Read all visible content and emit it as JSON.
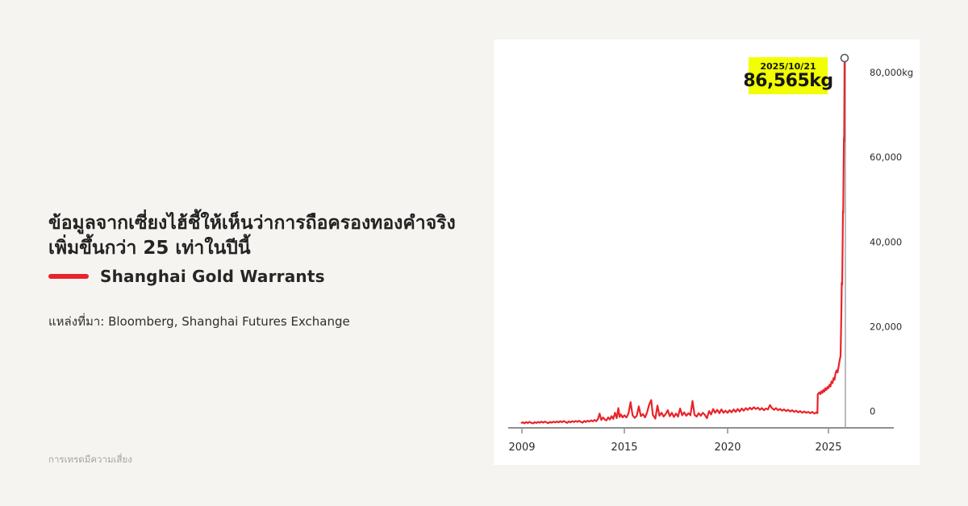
{
  "page": {
    "background_color": "#f5f4f1",
    "footer_note": "การเทรดมีความเสี่ยง"
  },
  "headline": {
    "line1": "ข้อมูลจากเซี่ยงไฮ้ชี้ให้เห็นว่าการถือครองทองคำจริง",
    "line2": "เพิ่มขึ้นกว่า 25 เท่าในปีนี้"
  },
  "legend": {
    "label": "Shanghai Gold Warrants",
    "color": "#e8242a"
  },
  "source": {
    "text": "แหล่งที่มา: Bloomberg, Shanghai Futures Exchange"
  },
  "chart_data": {
    "type": "line",
    "title": "Shanghai Gold Warrants",
    "unit": "kg",
    "grid": false,
    "legend_position": "outside-left",
    "xlim": [
      2008.9,
      2028.2
    ],
    "ylim": [
      0,
      86565
    ],
    "x_ticks": [
      {
        "label": "2009",
        "year": 2009
      },
      {
        "label": "2015",
        "year": 2015
      },
      {
        "label": "2020",
        "year": 2020
      },
      {
        "label": "2025",
        "year": 2025
      }
    ],
    "y_ticks": [
      {
        "label": "80,000kg",
        "value": 80000
      },
      {
        "label": "60,000",
        "value": 60000
      },
      {
        "label": "40,000",
        "value": 40000
      },
      {
        "label": "20,000",
        "value": 20000
      },
      {
        "label": "0",
        "value": 0
      }
    ],
    "annotation": {
      "date": "2025/10/21",
      "value_label": "86,565kg",
      "value": 86565,
      "highlight_color": "#f1ff00"
    },
    "marker": {
      "shape": "open-circle",
      "fill": "#ffffff",
      "stroke": "#5a5a5a"
    },
    "series": [
      {
        "name": "Shanghai Gold Warrants",
        "color": "#e8242a",
        "points": [
          [
            2008.95,
            350
          ],
          [
            2009.05,
            550
          ],
          [
            2009.15,
            300
          ],
          [
            2009.25,
            600
          ],
          [
            2009.35,
            380
          ],
          [
            2009.45,
            650
          ],
          [
            2009.55,
            420
          ],
          [
            2009.65,
            300
          ],
          [
            2009.75,
            580
          ],
          [
            2009.85,
            400
          ],
          [
            2009.95,
            620
          ],
          [
            2010.05,
            450
          ],
          [
            2010.15,
            700
          ],
          [
            2010.25,
            480
          ],
          [
            2010.35,
            720
          ],
          [
            2010.45,
            500
          ],
          [
            2010.55,
            350
          ],
          [
            2010.65,
            640
          ],
          [
            2010.75,
            460
          ],
          [
            2010.85,
            700
          ],
          [
            2010.95,
            520
          ],
          [
            2011.05,
            750
          ],
          [
            2011.15,
            540
          ],
          [
            2011.25,
            800
          ],
          [
            2011.35,
            580
          ],
          [
            2011.45,
            830
          ],
          [
            2011.55,
            600
          ],
          [
            2011.65,
            420
          ],
          [
            2011.75,
            760
          ],
          [
            2011.85,
            560
          ],
          [
            2011.95,
            820
          ],
          [
            2012.05,
            600
          ],
          [
            2012.15,
            880
          ],
          [
            2012.25,
            640
          ],
          [
            2012.35,
            900
          ],
          [
            2012.45,
            660
          ],
          [
            2012.55,
            480
          ],
          [
            2012.65,
            860
          ],
          [
            2012.75,
            620
          ],
          [
            2012.85,
            940
          ],
          [
            2012.95,
            700
          ],
          [
            2013.05,
            1000
          ],
          [
            2013.15,
            760
          ],
          [
            2013.25,
            1100
          ],
          [
            2013.35,
            820
          ],
          [
            2013.45,
            1300
          ],
          [
            2013.55,
            2600
          ],
          [
            2013.65,
            1100
          ],
          [
            2013.75,
            1700
          ],
          [
            2013.85,
            1200
          ],
          [
            2013.95,
            1000
          ],
          [
            2014.05,
            1700
          ],
          [
            2014.15,
            1200
          ],
          [
            2014.25,
            2000
          ],
          [
            2014.35,
            1350
          ],
          [
            2014.45,
            2800
          ],
          [
            2014.55,
            1550
          ],
          [
            2014.65,
            3900
          ],
          [
            2014.72,
            1800
          ],
          [
            2014.8,
            2400
          ],
          [
            2014.9,
            1700
          ],
          [
            2015.0,
            2200
          ],
          [
            2015.1,
            1700
          ],
          [
            2015.2,
            2600
          ],
          [
            2015.3,
            5300
          ],
          [
            2015.4,
            2200
          ],
          [
            2015.5,
            1600
          ],
          [
            2015.6,
            2100
          ],
          [
            2015.7,
            4300
          ],
          [
            2015.8,
            2000
          ],
          [
            2015.9,
            2500
          ],
          [
            2016.0,
            1700
          ],
          [
            2016.1,
            2900
          ],
          [
            2016.2,
            4700
          ],
          [
            2016.3,
            5800
          ],
          [
            2016.38,
            2300
          ],
          [
            2016.5,
            1400
          ],
          [
            2016.6,
            4500
          ],
          [
            2016.7,
            2100
          ],
          [
            2016.8,
            2800
          ],
          [
            2016.9,
            1900
          ],
          [
            2017.0,
            2500
          ],
          [
            2017.1,
            3400
          ],
          [
            2017.2,
            2000
          ],
          [
            2017.3,
            2800
          ],
          [
            2017.4,
            1800
          ],
          [
            2017.5,
            2600
          ],
          [
            2017.6,
            1900
          ],
          [
            2017.7,
            3800
          ],
          [
            2017.8,
            2200
          ],
          [
            2017.9,
            2900
          ],
          [
            2018.0,
            2100
          ],
          [
            2018.1,
            2700
          ],
          [
            2018.2,
            2200
          ],
          [
            2018.3,
            5600
          ],
          [
            2018.4,
            2300
          ],
          [
            2018.5,
            1900
          ],
          [
            2018.6,
            2700
          ],
          [
            2018.7,
            2100
          ],
          [
            2018.8,
            2800
          ],
          [
            2018.9,
            2300
          ],
          [
            2019.0,
            1500
          ],
          [
            2019.1,
            3200
          ],
          [
            2019.2,
            2400
          ],
          [
            2019.3,
            3700
          ],
          [
            2019.4,
            2800
          ],
          [
            2019.5,
            3500
          ],
          [
            2019.6,
            2700
          ],
          [
            2019.7,
            3600
          ],
          [
            2019.8,
            2800
          ],
          [
            2019.9,
            3300
          ],
          [
            2020.0,
            2800
          ],
          [
            2020.1,
            3400
          ],
          [
            2020.2,
            2900
          ],
          [
            2020.3,
            3600
          ],
          [
            2020.4,
            3000
          ],
          [
            2020.5,
            3700
          ],
          [
            2020.6,
            3100
          ],
          [
            2020.7,
            3800
          ],
          [
            2020.8,
            3300
          ],
          [
            2020.9,
            3900
          ],
          [
            2021.0,
            3500
          ],
          [
            2021.1,
            4000
          ],
          [
            2021.2,
            3600
          ],
          [
            2021.3,
            4100
          ],
          [
            2021.4,
            3700
          ],
          [
            2021.5,
            4000
          ],
          [
            2021.6,
            3500
          ],
          [
            2021.7,
            3900
          ],
          [
            2021.8,
            3400
          ],
          [
            2021.9,
            3800
          ],
          [
            2022.0,
            3600
          ],
          [
            2022.1,
            4600
          ],
          [
            2022.2,
            3900
          ],
          [
            2022.3,
            3500
          ],
          [
            2022.4,
            3900
          ],
          [
            2022.5,
            3400
          ],
          [
            2022.6,
            3700
          ],
          [
            2022.7,
            3300
          ],
          [
            2022.8,
            3600
          ],
          [
            2022.9,
            3200
          ],
          [
            2023.0,
            3500
          ],
          [
            2023.1,
            3100
          ],
          [
            2023.2,
            3400
          ],
          [
            2023.3,
            3000
          ],
          [
            2023.4,
            3300
          ],
          [
            2023.5,
            2900
          ],
          [
            2023.6,
            3200
          ],
          [
            2023.7,
            2800
          ],
          [
            2023.8,
            3100
          ],
          [
            2023.9,
            2800
          ],
          [
            2024.0,
            3000
          ],
          [
            2024.1,
            2700
          ],
          [
            2024.2,
            3000
          ],
          [
            2024.3,
            2600
          ],
          [
            2024.4,
            2900
          ],
          [
            2024.45,
            2700
          ],
          [
            2024.47,
            7200
          ],
          [
            2024.55,
            7600
          ],
          [
            2024.6,
            7200
          ],
          [
            2024.65,
            7900
          ],
          [
            2024.7,
            7500
          ],
          [
            2024.75,
            8200
          ],
          [
            2024.8,
            7800
          ],
          [
            2024.85,
            8600
          ],
          [
            2024.9,
            8200
          ],
          [
            2024.95,
            8900
          ],
          [
            2025.0,
            8600
          ],
          [
            2025.05,
            9400
          ],
          [
            2025.1,
            9000
          ],
          [
            2025.15,
            10200
          ],
          [
            2025.2,
            9800
          ],
          [
            2025.25,
            11000
          ],
          [
            2025.3,
            10600
          ],
          [
            2025.35,
            12000
          ],
          [
            2025.4,
            12800
          ],
          [
            2025.45,
            12300
          ],
          [
            2025.5,
            13600
          ],
          [
            2025.55,
            15000
          ],
          [
            2025.6,
            16200
          ],
          [
            2025.62,
            21000
          ],
          [
            2025.64,
            26500
          ],
          [
            2025.66,
            33500
          ],
          [
            2025.68,
            33000
          ],
          [
            2025.7,
            41000
          ],
          [
            2025.72,
            50500
          ],
          [
            2025.73,
            50000
          ],
          [
            2025.75,
            60500
          ],
          [
            2025.77,
            67800
          ],
          [
            2025.78,
            66800
          ],
          [
            2025.8,
            86565
          ]
        ]
      }
    ]
  }
}
